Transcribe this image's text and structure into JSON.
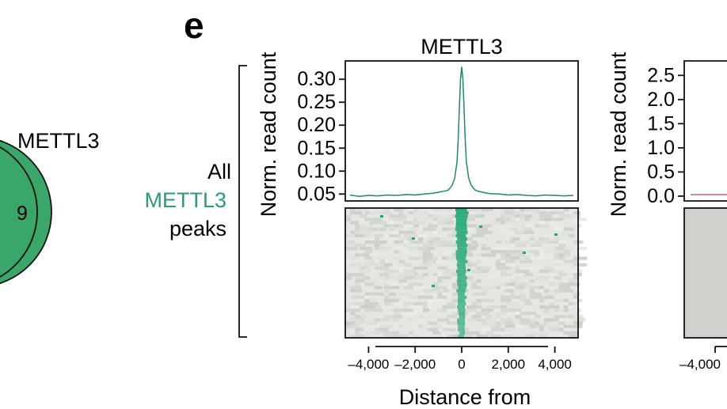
{
  "panel_letter": "e",
  "venn": {
    "label": "METTL3",
    "region_value": "9",
    "fill_color": "#3aa66a"
  },
  "row_label": {
    "line1": "All",
    "line2": "METTL3",
    "line3": "peaks",
    "line2_color": "#2e9a74"
  },
  "colors": {
    "mettl3_line": "#1f8a62",
    "heatmap_signal": "#22a877",
    "heatmap_background": "#cfd2cc",
    "right_line": "#c83a6a"
  },
  "chart_data": [
    {
      "type": "line",
      "title": "METTL3",
      "ylabel": "Norm. read count",
      "xlabel": "Distance from",
      "xlim": [
        -5000,
        5000
      ],
      "ylim": [
        0.035,
        0.34
      ],
      "yticks": [
        0.05,
        0.1,
        0.15,
        0.2,
        0.25,
        0.3
      ],
      "ytick_labels": [
        "0.05",
        "0.10",
        "0.15",
        "0.20",
        "0.25",
        "0.30"
      ],
      "xticks": [
        -4000,
        -2000,
        0,
        2000,
        4000
      ],
      "xtick_labels": [
        "–4,000",
        "–2,000",
        "0",
        "2,000",
        "4,000"
      ],
      "series": [
        {
          "x": [
            -4800,
            -4400,
            -4000,
            -3600,
            -3200,
            -2800,
            -2400,
            -2000,
            -1600,
            -1200,
            -1000,
            -800,
            -600,
            -500,
            -400,
            -300,
            -200,
            -150,
            -100,
            -50,
            0,
            50,
            100,
            150,
            200,
            300,
            400,
            500,
            600,
            800,
            1000,
            1200,
            1600,
            2000,
            2400,
            2800,
            3200,
            3600,
            4000,
            4400,
            4800
          ],
          "y": [
            0.048,
            0.045,
            0.047,
            0.046,
            0.048,
            0.047,
            0.049,
            0.048,
            0.05,
            0.052,
            0.054,
            0.056,
            0.058,
            0.063,
            0.07,
            0.085,
            0.12,
            0.17,
            0.24,
            0.3,
            0.327,
            0.3,
            0.24,
            0.17,
            0.12,
            0.085,
            0.07,
            0.063,
            0.058,
            0.055,
            0.053,
            0.051,
            0.05,
            0.048,
            0.049,
            0.047,
            0.046,
            0.048,
            0.047,
            0.046,
            0.047
          ]
        }
      ]
    },
    {
      "type": "heatmap",
      "xlim": [
        -5000,
        5000
      ],
      "description_rows": 40,
      "signal_center": 0
    },
    {
      "type": "line",
      "ylabel": "Norm. read count",
      "ylim": [
        -0.1,
        2.8
      ],
      "yticks": [
        0.0,
        0.5,
        1.0,
        1.5,
        2.0,
        2.5
      ],
      "ytick_labels": [
        "0.0",
        "0.5",
        "1.0",
        "1.5",
        "2.0",
        "2.5"
      ],
      "xtick_labels": [
        "–4,000"
      ],
      "series": [
        {
          "x": [
            -4800,
            -4400,
            -4000
          ],
          "y": [
            0.05,
            0.05,
            0.05
          ]
        }
      ]
    }
  ]
}
